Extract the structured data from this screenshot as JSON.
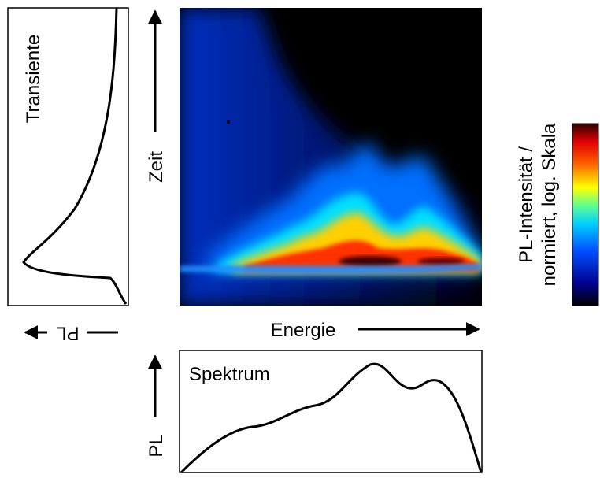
{
  "transient": {
    "label": "Transiente",
    "axis_label": "PL"
  },
  "streak_image": {
    "y_axis_label": "Zeit",
    "x_axis_label": "Energie"
  },
  "spectrum": {
    "label": "Spektrum",
    "axis_label": "PL"
  },
  "colorbar": {
    "label_line1": "PL-Intensität /",
    "label_line2": "normiert, log. Skala"
  }
}
